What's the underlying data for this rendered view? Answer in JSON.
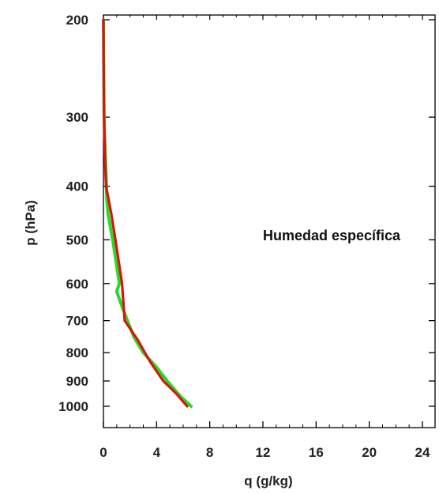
{
  "chart_data": {
    "type": "line",
    "title": "",
    "annotation": "Humedad específica",
    "xlabel": "q (g/kg)",
    "ylabel": "p (hPa)",
    "xlim": [
      0,
      25
    ],
    "ylim": [
      1050,
      200
    ],
    "y_scale": "log",
    "y_inverted": true,
    "x_ticks": [
      0,
      4,
      8,
      12,
      16,
      20,
      24
    ],
    "x_tick_labels": [
      "0",
      "4",
      "8",
      "12",
      "16",
      "20",
      "24"
    ],
    "y_ticks": [
      200,
      300,
      400,
      500,
      600,
      700,
      800,
      900,
      1000
    ],
    "y_tick_labels": [
      "200",
      "300",
      "400",
      "500",
      "600",
      "700",
      "800",
      "900",
      "1000"
    ],
    "grid": false,
    "series": [
      {
        "color": "#22dd22",
        "points": [
          {
            "q": 6.6,
            "p": 1000
          },
          {
            "q": 5.8,
            "p": 960
          },
          {
            "q": 4.8,
            "p": 900
          },
          {
            "q": 4.0,
            "p": 850
          },
          {
            "q": 3.0,
            "p": 800
          },
          {
            "q": 2.3,
            "p": 750
          },
          {
            "q": 1.8,
            "p": 700
          },
          {
            "q": 1.3,
            "p": 650
          },
          {
            "q": 1.0,
            "p": 620
          },
          {
            "q": 1.2,
            "p": 600
          },
          {
            "q": 0.7,
            "p": 500
          },
          {
            "q": 0.35,
            "p": 450
          },
          {
            "q": 0.25,
            "p": 420
          },
          {
            "q": 0.05,
            "p": 300
          },
          {
            "q": 0.0,
            "p": 200
          }
        ]
      },
      {
        "color": "#dd1111",
        "points": [
          {
            "q": 6.3,
            "p": 1000
          },
          {
            "q": 5.5,
            "p": 950
          },
          {
            "q": 4.5,
            "p": 900
          },
          {
            "q": 3.5,
            "p": 830
          },
          {
            "q": 2.6,
            "p": 760
          },
          {
            "q": 1.6,
            "p": 700
          },
          {
            "q": 1.4,
            "p": 600
          },
          {
            "q": 0.9,
            "p": 500
          },
          {
            "q": 0.6,
            "p": 450
          },
          {
            "q": 0.2,
            "p": 400
          },
          {
            "q": 0.1,
            "p": 350
          },
          {
            "q": 0.05,
            "p": 300
          },
          {
            "q": 0.0,
            "p": 200
          }
        ]
      }
    ]
  }
}
